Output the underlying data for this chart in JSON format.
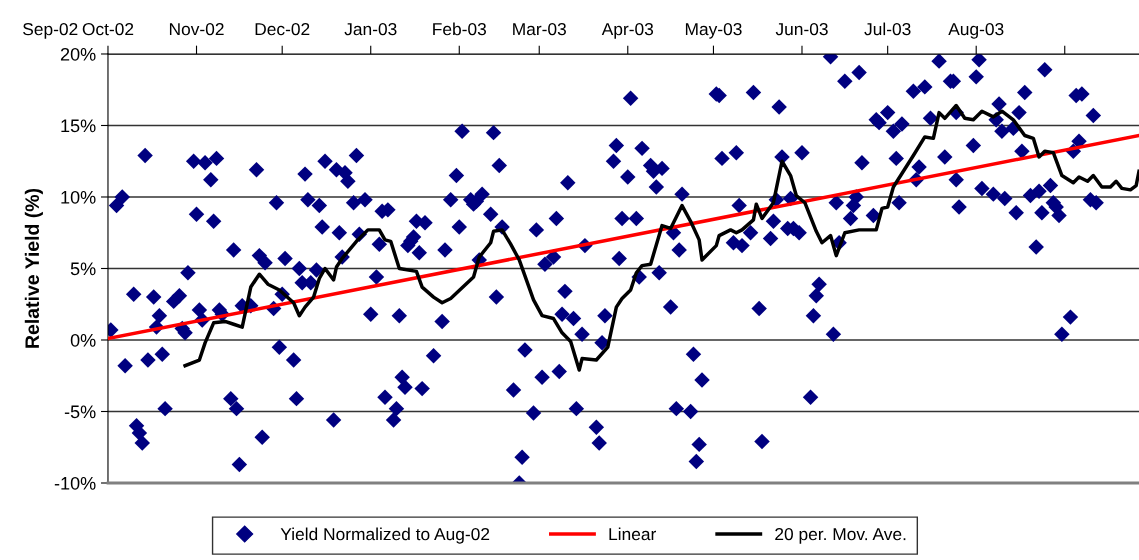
{
  "chart_data": {
    "type": "scatter",
    "ylabel": "Relative Yield (%)",
    "xlim": [
      "2002-10-01",
      "2003-09-27"
    ],
    "ylim": [
      -10,
      20
    ],
    "yticks": [
      {
        "value": -10,
        "label": "-10%"
      },
      {
        "value": -5,
        "label": "-5%"
      },
      {
        "value": 0,
        "label": "0%"
      },
      {
        "value": 5,
        "label": "5%"
      },
      {
        "value": 10,
        "label": "10%"
      },
      {
        "value": 15,
        "label": "15%"
      },
      {
        "value": 20,
        "label": "20%"
      }
    ],
    "annotations": [
      "Sep-02"
    ],
    "xticks": [
      {
        "value": "2002-10-01",
        "label": "Oct-02"
      },
      {
        "value": "2002-11-01",
        "label": "Nov-02"
      },
      {
        "value": "2002-12-01",
        "label": "Dec-02"
      },
      {
        "value": "2003-01-01",
        "label": "Jan-03"
      },
      {
        "value": "2003-02-01",
        "label": "Feb-03"
      },
      {
        "value": "2003-03-01",
        "label": "Mar-03"
      },
      {
        "value": "2003-04-01",
        "label": "Apr-03"
      },
      {
        "value": "2003-05-01",
        "label": "May-03"
      },
      {
        "value": "2003-06-01",
        "label": "Jun-03"
      },
      {
        "value": "2003-07-01",
        "label": "Jul-03"
      },
      {
        "value": "2003-08-01",
        "label": "Aug-03"
      },
      {
        "value": "2003-09-01",
        "label": null
      }
    ],
    "grid": "y",
    "legend": "bottom",
    "series": [
      {
        "name": "Yield Normalized to Aug-02",
        "marker": "diamond",
        "color": "#000080",
        "x": [
          "2002-10-02",
          "2002-10-04",
          "2002-10-06",
          "2002-10-07",
          "2002-10-10",
          "2002-10-11",
          "2002-10-12",
          "2002-10-13",
          "2002-10-14",
          "2002-10-15",
          "2002-10-17",
          "2002-10-18",
          "2002-10-19",
          "2002-10-20",
          "2002-10-21",
          "2002-10-24",
          "2002-10-26",
          "2002-10-27",
          "2002-10-28",
          "2002-10-29",
          "2002-10-31",
          "2002-11-01",
          "2002-11-02",
          "2002-11-03",
          "2002-11-04",
          "2002-11-06",
          "2002-11-07",
          "2002-11-08",
          "2002-11-09",
          "2002-11-10",
          "2002-11-13",
          "2002-11-14",
          "2002-11-15",
          "2002-11-16",
          "2002-11-17",
          "2002-11-20",
          "2002-11-22",
          "2002-11-23",
          "2002-11-24",
          "2002-11-25",
          "2002-11-28",
          "2002-11-29",
          "2002-11-30",
          "2002-12-01",
          "2002-12-02",
          "2002-12-05",
          "2002-12-06",
          "2002-12-07",
          "2002-12-08",
          "2002-12-09",
          "2002-12-10",
          "2002-12-11",
          "2002-12-13",
          "2002-12-14",
          "2002-12-15",
          "2002-12-16",
          "2002-12-19",
          "2002-12-20",
          "2002-12-21",
          "2002-12-22",
          "2002-12-23",
          "2002-12-24",
          "2002-12-26",
          "2002-12-27",
          "2002-12-28",
          "2002-12-30",
          "2003-01-01",
          "2003-01-03",
          "2003-01-04",
          "2003-01-05",
          "2003-01-06",
          "2003-01-07",
          "2003-01-09",
          "2003-01-10",
          "2003-01-11",
          "2003-01-12",
          "2003-01-13",
          "2003-01-14",
          "2003-01-15",
          "2003-01-16",
          "2003-01-17",
          "2003-01-18",
          "2003-01-19",
          "2003-01-20",
          "2003-01-23",
          "2003-01-26",
          "2003-01-27",
          "2003-01-29",
          "2003-01-31",
          "2003-02-01",
          "2003-02-02",
          "2003-02-05",
          "2003-02-06",
          "2003-02-07",
          "2003-02-08",
          "2003-02-09",
          "2003-02-12",
          "2003-02-13",
          "2003-02-14",
          "2003-02-15",
          "2003-02-16",
          "2003-02-20",
          "2003-02-22",
          "2003-02-23",
          "2003-02-24",
          "2003-02-27",
          "2003-02-28",
          "2003-03-02",
          "2003-03-03",
          "2003-03-06",
          "2003-03-07",
          "2003-03-08",
          "2003-03-09",
          "2003-03-10",
          "2003-03-11",
          "2003-03-13",
          "2003-03-14",
          "2003-03-16",
          "2003-03-17",
          "2003-03-21",
          "2003-03-22",
          "2003-03-23",
          "2003-03-24",
          "2003-03-27",
          "2003-03-28",
          "2003-03-29",
          "2003-03-30",
          "2003-04-01",
          "2003-04-02",
          "2003-04-04",
          "2003-04-05",
          "2003-04-06",
          "2003-04-09",
          "2003-04-10",
          "2003-04-11",
          "2003-04-12",
          "2003-04-13",
          "2003-04-16",
          "2003-04-17",
          "2003-04-18",
          "2003-04-19",
          "2003-04-20",
          "2003-04-23",
          "2003-04-24",
          "2003-04-25",
          "2003-04-26",
          "2003-04-27",
          "2003-05-02",
          "2003-05-03",
          "2003-05-04",
          "2003-05-08",
          "2003-05-09",
          "2003-05-10",
          "2003-05-11",
          "2003-05-14",
          "2003-05-15",
          "2003-05-17",
          "2003-05-18",
          "2003-05-21",
          "2003-05-22",
          "2003-05-23",
          "2003-05-24",
          "2003-05-25",
          "2003-05-27",
          "2003-05-28",
          "2003-05-29",
          "2003-05-31",
          "2003-06-01",
          "2003-06-04",
          "2003-06-05",
          "2003-06-06",
          "2003-06-07",
          "2003-06-11",
          "2003-06-12",
          "2003-06-13",
          "2003-06-14",
          "2003-06-16",
          "2003-06-18",
          "2003-06-19",
          "2003-06-20",
          "2003-06-21",
          "2003-06-22",
          "2003-06-26",
          "2003-06-27",
          "2003-06-28",
          "2003-07-01",
          "2003-07-03",
          "2003-07-04",
          "2003-07-05",
          "2003-07-06",
          "2003-07-10",
          "2003-07-11",
          "2003-07-12",
          "2003-07-14",
          "2003-07-16",
          "2003-07-19",
          "2003-07-21",
          "2003-07-23",
          "2003-07-24",
          "2003-07-25",
          "2003-07-25",
          "2003-07-26",
          "2003-07-31",
          "2003-08-01",
          "2003-08-02",
          "2003-08-03",
          "2003-08-07",
          "2003-08-08",
          "2003-08-09",
          "2003-08-10",
          "2003-08-11",
          "2003-08-14",
          "2003-08-15",
          "2003-08-16",
          "2003-08-17",
          "2003-08-18",
          "2003-08-20",
          "2003-08-22",
          "2003-08-23",
          "2003-08-24",
          "2003-08-25",
          "2003-08-27",
          "2003-08-28",
          "2003-08-29",
          "2003-08-30",
          "2003-08-31",
          "2003-09-03",
          "2003-09-04",
          "2003-09-05",
          "2003-09-06",
          "2003-09-07",
          "2003-09-10",
          "2003-09-11",
          "2003-09-12"
        ],
        "values": [
          0.7,
          9.4,
          10.0,
          -1.8,
          3.2,
          -6.0,
          -6.5,
          -7.2,
          12.9,
          -1.4,
          3.0,
          0.9,
          1.7,
          -1.0,
          -4.8,
          2.7,
          3.1,
          0.8,
          0.5,
          4.7,
          12.5,
          8.8,
          2.1,
          1.4,
          12.4,
          11.2,
          8.3,
          12.7,
          2.1,
          1.8,
          -4.1,
          6.3,
          -4.8,
          -8.7,
          2.4,
          2.4,
          11.9,
          5.9,
          -6.8,
          5.4,
          2.2,
          9.6,
          -0.5,
          3.2,
          5.7,
          -1.4,
          -4.1,
          5.0,
          4.0,
          11.6,
          9.8,
          4.0,
          4.9,
          9.4,
          7.9,
          12.5,
          -5.6,
          11.9,
          7.5,
          5.8,
          11.7,
          11.1,
          9.6,
          12.9,
          7.4,
          9.8,
          1.8,
          4.4,
          6.7,
          9.0,
          -4.0,
          9.1,
          -5.6,
          -4.8,
          1.7,
          -2.6,
          -3.3,
          6.6,
          6.9,
          7.2,
          8.3,
          6.1,
          -3.4,
          8.2,
          -1.1,
          1.3,
          6.3,
          9.8,
          11.5,
          7.9,
          14.6,
          9.8,
          9.5,
          9.7,
          5.6,
          10.2,
          8.8,
          14.5,
          3.0,
          12.2,
          7.9,
          -3.5,
          -10.0,
          -8.2,
          -0.7,
          -5.1,
          7.7,
          -2.6,
          5.3,
          5.8,
          8.5,
          -2.2,
          1.8,
          3.4,
          11.0,
          1.5,
          -4.8,
          0.4,
          6.6,
          -6.1,
          -7.2,
          -0.2,
          1.7,
          12.5,
          13.6,
          5.7,
          8.5,
          11.4,
          16.9,
          8.5,
          4.4,
          13.4,
          12.2,
          11.8,
          10.7,
          4.7,
          12.0,
          2.3,
          7.5,
          -4.8,
          6.3,
          10.2,
          -5.0,
          -1.0,
          -8.5,
          -7.3,
          -2.8,
          17.2,
          17.1,
          12.7,
          6.8,
          13.1,
          9.4,
          6.6,
          7.5,
          17.3,
          2.2,
          -7.1,
          7.1,
          8.3,
          9.8,
          16.3,
          12.8,
          7.8,
          9.9,
          7.8,
          7.5,
          13.1,
          -4.0,
          1.7,
          3.1,
          3.9,
          19.8,
          0.4,
          9.6,
          6.8,
          18.1,
          8.5,
          9.4,
          10.0,
          18.7,
          12.4,
          8.7,
          15.4,
          15.2,
          15.9,
          14.6,
          12.7,
          9.6,
          15.1,
          17.4,
          11.2,
          12.1,
          17.7,
          15.5,
          19.5,
          12.8,
          18.1,
          18.1,
          11.2,
          15.9,
          9.3,
          13.6,
          18.4,
          19.6,
          10.6,
          10.2,
          15.4,
          16.5,
          14.6,
          9.9,
          14.8,
          8.9,
          15.9,
          13.2,
          17.3,
          10.1,
          6.5,
          10.4,
          8.9,
          18.9,
          10.8,
          9.6,
          9.3,
          8.7,
          0.4,
          1.6,
          13.2,
          17.1,
          13.9,
          17.2,
          9.8,
          15.7,
          9.6
        ]
      },
      {
        "name": "Linear",
        "type": "line",
        "color": "#ff0000",
        "x": [
          "2002-10-01",
          "2003-09-27"
        ],
        "values": [
          0.1,
          14.3
        ]
      },
      {
        "name": "20 per. Mov. Ave.",
        "type": "line",
        "color": "#000000",
        "x": [
          "2002-10-28",
          "2002-11-02",
          "2002-11-04",
          "2002-11-07",
          "2002-11-11",
          "2002-11-14",
          "2002-11-17",
          "2002-11-20",
          "2002-11-23",
          "2002-11-26",
          "2002-11-30",
          "2002-12-05",
          "2002-12-07",
          "2002-12-09",
          "2002-12-12",
          "2002-12-14",
          "2002-12-16",
          "2002-12-19",
          "2002-12-20",
          "2002-12-22",
          "2002-12-27",
          "2002-12-31",
          "2003-01-04",
          "2003-01-06",
          "2003-01-08",
          "2003-01-11",
          "2003-01-17",
          "2003-01-19",
          "2003-01-23",
          "2003-01-26",
          "2003-01-29",
          "2003-02-06",
          "2003-02-08",
          "2003-02-12",
          "2003-02-13",
          "2003-02-16",
          "2003-02-19",
          "2003-02-22",
          "2003-02-27",
          "2003-03-02",
          "2003-03-06",
          "2003-03-09",
          "2003-03-12",
          "2003-03-15",
          "2003-03-16",
          "2003-03-21",
          "2003-03-25",
          "2003-03-28",
          "2003-03-30",
          "2003-04-02",
          "2003-04-04",
          "2003-04-06",
          "2003-04-09",
          "2003-04-13",
          "2003-04-16",
          "2003-04-18",
          "2003-04-20",
          "2003-04-23",
          "2003-04-26",
          "2003-04-27",
          "2003-05-02",
          "2003-05-03",
          "2003-05-07",
          "2003-05-09",
          "2003-05-11",
          "2003-05-15",
          "2003-05-16",
          "2003-05-18",
          "2003-05-22",
          "2003-05-25",
          "2003-05-28",
          "2003-05-30",
          "2003-06-02",
          "2003-06-06",
          "2003-06-08",
          "2003-06-11",
          "2003-06-13",
          "2003-06-16",
          "2003-06-21",
          "2003-06-27",
          "2003-06-29",
          "2003-07-01",
          "2003-07-03",
          "2003-07-10",
          "2003-07-14",
          "2003-07-17",
          "2003-07-19",
          "2003-07-21",
          "2003-07-25",
          "2003-07-28",
          "2003-07-31",
          "2003-08-03",
          "2003-08-07",
          "2003-08-10",
          "2003-08-14",
          "2003-08-18",
          "2003-08-21",
          "2003-08-23",
          "2003-08-25",
          "2003-08-28",
          "2003-08-31",
          "2003-09-04",
          "2003-09-06",
          "2003-09-09",
          "2003-09-11",
          "2003-09-14",
          "2003-09-17",
          "2003-09-19",
          "2003-09-21",
          "2003-09-24",
          "2003-09-26",
          "2003-09-27"
        ],
        "values": [
          -1.8,
          -1.4,
          -0.2,
          1.2,
          1.3,
          1.1,
          0.9,
          3.7,
          4.6,
          3.9,
          3.5,
          2.6,
          1.7,
          2.3,
          3.0,
          4.3,
          5.0,
          4.2,
          5.1,
          5.7,
          6.9,
          7.7,
          7.7,
          7.0,
          6.9,
          5.0,
          4.8,
          3.7,
          3.0,
          2.6,
          2.9,
          4.4,
          5.8,
          6.8,
          7.6,
          7.7,
          6.7,
          5.6,
          2.8,
          1.7,
          1.5,
          0.5,
          -0.1,
          -2.1,
          -1.3,
          -1.4,
          -0.5,
          2.3,
          2.9,
          3.5,
          4.7,
          5.2,
          5.3,
          8.0,
          7.8,
          8.6,
          9.4,
          8.3,
          7.0,
          5.6,
          6.6,
          7.3,
          7.7,
          7.5,
          7.7,
          8.4,
          9.5,
          8.5,
          9.6,
          12.5,
          11.5,
          10.1,
          9.6,
          7.6,
          6.8,
          7.3,
          5.9,
          7.5,
          7.7,
          7.7,
          9.2,
          9.3,
          10.7,
          12.9,
          14.2,
          14.1,
          15.9,
          15.5,
          16.4,
          15.5,
          15.4,
          16.0,
          15.6,
          16.0,
          15.4,
          14.3,
          14.1,
          12.8,
          13.2,
          13.1,
          11.5,
          11.0,
          11.4,
          11.1,
          11.5,
          10.7,
          10.7,
          11.1,
          10.6,
          10.5,
          10.8,
          11.8
        ]
      }
    ]
  }
}
